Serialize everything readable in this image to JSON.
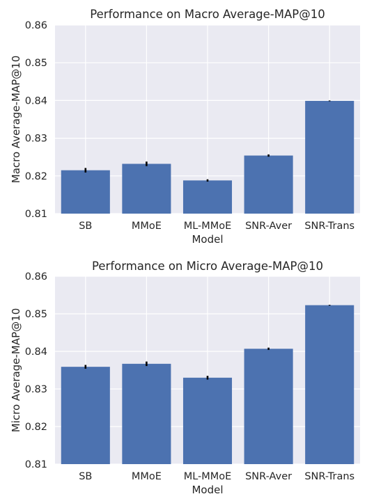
{
  "chart_data": [
    {
      "type": "bar",
      "title": "Performance on Macro Average-MAP@10",
      "xlabel": "Model",
      "ylabel": "Macro Average-MAP@10",
      "categories": [
        "SB",
        "MMoE",
        "ML-MMoE",
        "SNR-Aver",
        "SNR-Trans"
      ],
      "values": [
        0.8215,
        0.8232,
        0.8188,
        0.8254,
        0.8399
      ],
      "errors": [
        0.0006,
        0.0006,
        0.0003,
        0.0003,
        0.0001
      ],
      "ylim": [
        0.81,
        0.86
      ],
      "yticks": [
        "0.81",
        "0.82",
        "0.83",
        "0.84",
        "0.85",
        "0.86"
      ],
      "grid": true,
      "colors": {
        "bar": "#4c72b0",
        "background": "#eaeaf2",
        "grid": "#ffffff",
        "error": "#000000"
      }
    },
    {
      "type": "bar",
      "title": "Performance on Micro Average-MAP@10",
      "xlabel": "Model",
      "ylabel": "Micro Average-MAP@10",
      "categories": [
        "SB",
        "MMoE",
        "ML-MMoE",
        "SNR-Aver",
        "SNR-Trans"
      ],
      "values": [
        0.8359,
        0.8367,
        0.833,
        0.8407,
        0.8523
      ],
      "errors": [
        0.0005,
        0.0006,
        0.0005,
        0.0003,
        0.0001
      ],
      "ylim": [
        0.81,
        0.86
      ],
      "yticks": [
        "0.81",
        "0.82",
        "0.83",
        "0.84",
        "0.85",
        "0.86"
      ],
      "grid": true,
      "colors": {
        "bar": "#4c72b0",
        "background": "#eaeaf2",
        "grid": "#ffffff",
        "error": "#000000"
      }
    }
  ]
}
